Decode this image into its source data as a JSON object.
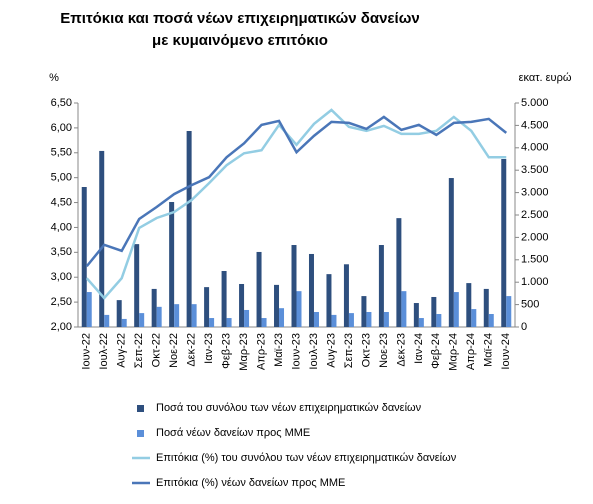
{
  "chart_data": {
    "type": "bar",
    "title": "Επιτόκια και ποσά νέων επιχειρηματικών δανείων με κυμαινόμενο επιτόκιο",
    "y_label": "%",
    "y2_label": "εκατ. ευρώ",
    "categories": [
      "Ιουν-22",
      "Ιουλ-22",
      "Αυγ-22",
      "Σεπ-22",
      "Οκτ-22",
      "Νοε-22",
      "Δεκ-22",
      "Ιαν-23",
      "Φεβ-23",
      "Μαρ-23",
      "Απρ-23",
      "Μαϊ-23",
      "Ιουν-23",
      "Ιουλ-23",
      "Αυγ-23",
      "Σεπ-23",
      "Οκτ-23",
      "Νοε-23",
      "Δεκ-23",
      "Ιαν-24",
      "Φεβ-24",
      "Μαρ-24",
      "Απρ-24",
      "Μαϊ-24",
      "Ιουν-24"
    ],
    "series": [
      {
        "name": "Ποσά του συνόλου των νέων επιχειρηματικών δανείων",
        "type": "bar",
        "axis": "y2",
        "color": "#2e4f7e",
        "values": [
          3125,
          3930,
          600,
          1850,
          850,
          2790,
          4375,
          890,
          1250,
          960,
          1675,
          940,
          1830,
          1630,
          1180,
          1400,
          690,
          1830,
          2430,
          535,
          670,
          3325,
          980,
          850,
          3750
        ]
      },
      {
        "name": "Ποσά νέων δανείων προς ΜΜΕ",
        "type": "bar",
        "axis": "y2",
        "color": "#5b8fd9",
        "values": [
          780,
          270,
          180,
          310,
          450,
          510,
          510,
          200,
          200,
          380,
          200,
          420,
          800,
          335,
          270,
          310,
          335,
          335,
          800,
          200,
          290,
          780,
          400,
          290,
          690
        ]
      },
      {
        "name": "Επιτόκια (%) του συνόλου των νέων επιχειρηματικών δανείων",
        "type": "line",
        "axis": "y",
        "color": "#93cde3",
        "values": [
          2.98,
          2.58,
          2.98,
          3.99,
          4.19,
          4.31,
          4.55,
          4.89,
          5.25,
          5.49,
          5.55,
          6.06,
          5.66,
          6.08,
          6.36,
          6.02,
          5.94,
          6.04,
          5.88,
          5.88,
          5.94,
          6.22,
          5.94,
          5.41,
          5.41
        ]
      },
      {
        "name": "Επιτόκια (%) νέων δανείων προς ΜΜΕ",
        "type": "line",
        "axis": "y",
        "color": "#4a76b8",
        "values": [
          3.22,
          3.65,
          3.53,
          4.17,
          4.41,
          4.67,
          4.85,
          5.01,
          5.41,
          5.69,
          6.06,
          6.14,
          5.51,
          5.84,
          6.12,
          6.1,
          5.98,
          6.22,
          5.96,
          6.06,
          5.86,
          6.1,
          6.12,
          6.18,
          5.9
        ]
      }
    ],
    "ylim": [
      2,
      6.5
    ],
    "yticks": [
      {
        "value": 2,
        "label": "2,00"
      },
      {
        "value": 2.5,
        "label": "2,50"
      },
      {
        "value": 3,
        "label": "3,00"
      },
      {
        "value": 3.5,
        "label": "3,50"
      },
      {
        "value": 4,
        "label": "4,00"
      },
      {
        "value": 4.5,
        "label": "4,50"
      },
      {
        "value": 5,
        "label": "5,00"
      },
      {
        "value": 5.5,
        "label": "5,50"
      },
      {
        "value": 6,
        "label": "6,00"
      },
      {
        "value": 6.5,
        "label": "6,50"
      }
    ],
    "y2lim": [
      0,
      5000
    ],
    "y2ticks": [
      0,
      500,
      {
        "value": 1000,
        "label": "1.000"
      },
      {
        "value": 1500,
        "label": "1.500"
      },
      {
        "value": 2000,
        "label": "2.000"
      },
      {
        "value": 2500,
        "label": "2.500"
      },
      {
        "value": 3000,
        "label": "3.000"
      },
      {
        "value": 3500,
        "label": "3.500"
      },
      {
        "value": 4000,
        "label": "4.000"
      },
      {
        "value": 4500,
        "label": "4.500"
      },
      {
        "value": 5000,
        "label": "5.000"
      }
    ],
    "grid": false,
    "legend": "bottom"
  }
}
